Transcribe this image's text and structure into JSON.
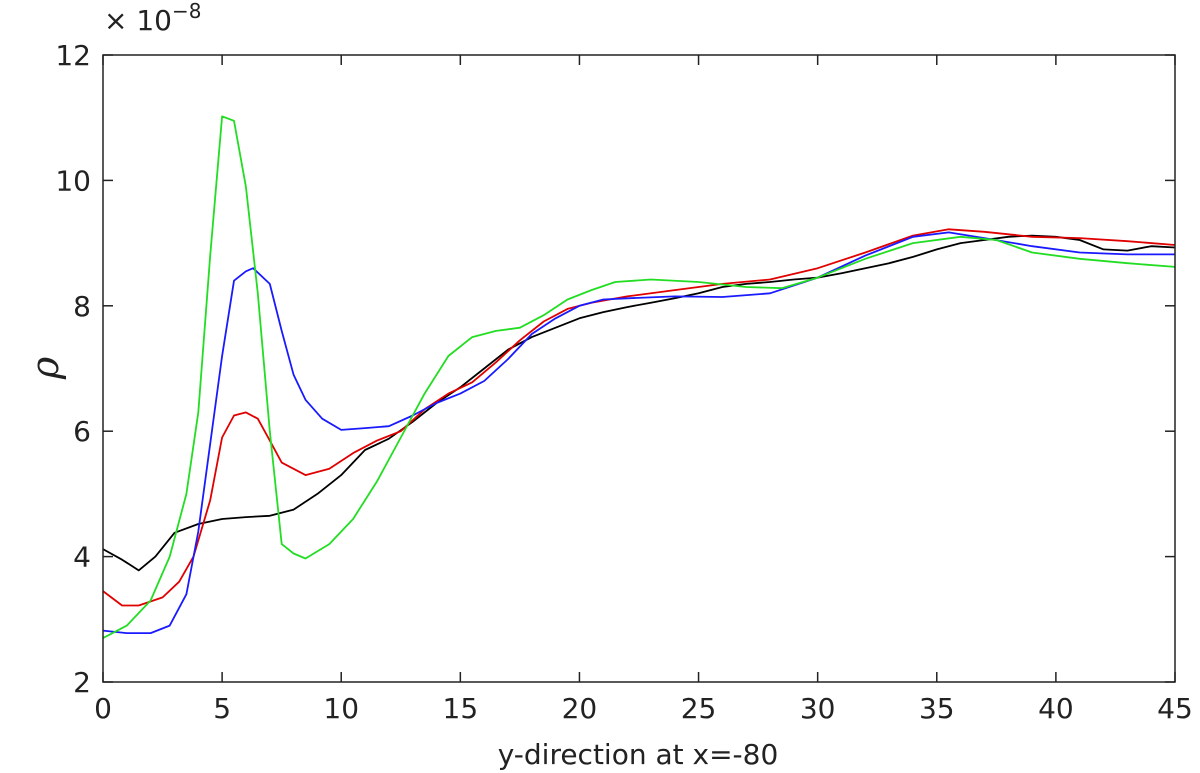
{
  "chart_data": {
    "type": "line",
    "xlabel": "y-direction at x=-80",
    "ylabel": "ρ",
    "y_exponent_prefix": "× 10",
    "y_exponent_power": "−8",
    "xlim": [
      0,
      45
    ],
    "ylim": [
      2,
      12
    ],
    "x_ticks": [
      0,
      5,
      10,
      15,
      20,
      25,
      30,
      35,
      40,
      45
    ],
    "y_ticks": [
      2,
      4,
      6,
      8,
      10,
      12
    ],
    "x_tick_labels": [
      "0",
      "5",
      "10",
      "15",
      "20",
      "25",
      "30",
      "35",
      "40",
      "45"
    ],
    "y_tick_labels": [
      "2",
      "4",
      "6",
      "8",
      "10",
      "12"
    ],
    "grid": false,
    "series": [
      {
        "color": "#000000",
        "points": [
          [
            0,
            4.12
          ],
          [
            0.8,
            3.95
          ],
          [
            1.5,
            3.78
          ],
          [
            2.2,
            4.0
          ],
          [
            3,
            4.38
          ],
          [
            4,
            4.52
          ],
          [
            5,
            4.6
          ],
          [
            6,
            4.63
          ],
          [
            7,
            4.65
          ],
          [
            8,
            4.75
          ],
          [
            9,
            5.0
          ],
          [
            10,
            5.3
          ],
          [
            11,
            5.7
          ],
          [
            12,
            5.88
          ],
          [
            13,
            6.15
          ],
          [
            14,
            6.45
          ],
          [
            15,
            6.7
          ],
          [
            16,
            7.0
          ],
          [
            17,
            7.3
          ],
          [
            18,
            7.5
          ],
          [
            19,
            7.65
          ],
          [
            20,
            7.8
          ],
          [
            21,
            7.9
          ],
          [
            22,
            7.98
          ],
          [
            23,
            8.05
          ],
          [
            24,
            8.12
          ],
          [
            25,
            8.2
          ],
          [
            26,
            8.3
          ],
          [
            27,
            8.35
          ],
          [
            28,
            8.38
          ],
          [
            29,
            8.42
          ],
          [
            30,
            8.45
          ],
          [
            31,
            8.52
          ],
          [
            32,
            8.6
          ],
          [
            33,
            8.68
          ],
          [
            34,
            8.78
          ],
          [
            35,
            8.9
          ],
          [
            36,
            9.0
          ],
          [
            37,
            9.05
          ],
          [
            38,
            9.1
          ],
          [
            39,
            9.12
          ],
          [
            40,
            9.1
          ],
          [
            41,
            9.05
          ],
          [
            42,
            8.9
          ],
          [
            43,
            8.88
          ],
          [
            44,
            8.95
          ],
          [
            45,
            8.93
          ]
        ]
      },
      {
        "color": "#e00000",
        "points": [
          [
            0,
            3.45
          ],
          [
            0.8,
            3.22
          ],
          [
            1.5,
            3.22
          ],
          [
            2.5,
            3.35
          ],
          [
            3.2,
            3.6
          ],
          [
            3.8,
            4.0
          ],
          [
            4.5,
            4.9
          ],
          [
            5,
            5.9
          ],
          [
            5.5,
            6.25
          ],
          [
            6,
            6.3
          ],
          [
            6.5,
            6.2
          ],
          [
            7,
            5.85
          ],
          [
            7.5,
            5.5
          ],
          [
            8.5,
            5.3
          ],
          [
            9.5,
            5.4
          ],
          [
            10.5,
            5.65
          ],
          [
            11.5,
            5.85
          ],
          [
            12.5,
            6.0
          ],
          [
            13.5,
            6.35
          ],
          [
            14.5,
            6.6
          ],
          [
            15.5,
            6.78
          ],
          [
            16.5,
            7.1
          ],
          [
            17.5,
            7.45
          ],
          [
            18.5,
            7.75
          ],
          [
            19.5,
            7.95
          ],
          [
            20.5,
            8.05
          ],
          [
            22,
            8.15
          ],
          [
            24,
            8.25
          ],
          [
            26,
            8.35
          ],
          [
            28,
            8.42
          ],
          [
            30,
            8.6
          ],
          [
            32,
            8.85
          ],
          [
            34,
            9.12
          ],
          [
            35.5,
            9.22
          ],
          [
            37,
            9.18
          ],
          [
            39,
            9.1
          ],
          [
            41,
            9.08
          ],
          [
            43,
            9.03
          ],
          [
            45,
            8.97
          ]
        ]
      },
      {
        "color": "#1a1aff",
        "points": [
          [
            0,
            2.82
          ],
          [
            1,
            2.78
          ],
          [
            2,
            2.78
          ],
          [
            2.8,
            2.9
          ],
          [
            3.5,
            3.4
          ],
          [
            4,
            4.4
          ],
          [
            4.5,
            5.8
          ],
          [
            5,
            7.2
          ],
          [
            5.5,
            8.4
          ],
          [
            6,
            8.55
          ],
          [
            6.3,
            8.6
          ],
          [
            7,
            8.35
          ],
          [
            7.5,
            7.6
          ],
          [
            8,
            6.9
          ],
          [
            8.5,
            6.5
          ],
          [
            9.2,
            6.2
          ],
          [
            10,
            6.02
          ],
          [
            11,
            6.05
          ],
          [
            12,
            6.08
          ],
          [
            13,
            6.25
          ],
          [
            14,
            6.45
          ],
          [
            15,
            6.6
          ],
          [
            16,
            6.8
          ],
          [
            17,
            7.15
          ],
          [
            18,
            7.55
          ],
          [
            19,
            7.8
          ],
          [
            20,
            8.0
          ],
          [
            21,
            8.1
          ],
          [
            22,
            8.12
          ],
          [
            24,
            8.15
          ],
          [
            26,
            8.14
          ],
          [
            28,
            8.2
          ],
          [
            30,
            8.45
          ],
          [
            32,
            8.8
          ],
          [
            34,
            9.1
          ],
          [
            35.5,
            9.17
          ],
          [
            37,
            9.08
          ],
          [
            39,
            8.95
          ],
          [
            41,
            8.85
          ],
          [
            43,
            8.82
          ],
          [
            45,
            8.82
          ]
        ]
      },
      {
        "color": "#22dd22",
        "points": [
          [
            0,
            2.7
          ],
          [
            1,
            2.9
          ],
          [
            2,
            3.3
          ],
          [
            2.8,
            4.0
          ],
          [
            3.5,
            5.0
          ],
          [
            4,
            6.3
          ],
          [
            4.5,
            8.8
          ],
          [
            5,
            11.02
          ],
          [
            5.5,
            10.95
          ],
          [
            6,
            9.9
          ],
          [
            6.5,
            8.2
          ],
          [
            7,
            6.0
          ],
          [
            7.5,
            4.2
          ],
          [
            8,
            4.05
          ],
          [
            8.5,
            3.97
          ],
          [
            9.5,
            4.2
          ],
          [
            10.5,
            4.6
          ],
          [
            11.5,
            5.2
          ],
          [
            12.5,
            5.9
          ],
          [
            13.5,
            6.6
          ],
          [
            14.5,
            7.2
          ],
          [
            15.5,
            7.5
          ],
          [
            16.5,
            7.6
          ],
          [
            17.5,
            7.65
          ],
          [
            18.5,
            7.85
          ],
          [
            19.5,
            8.1
          ],
          [
            20.5,
            8.25
          ],
          [
            21.5,
            8.38
          ],
          [
            23,
            8.42
          ],
          [
            25,
            8.38
          ],
          [
            27,
            8.3
          ],
          [
            28.5,
            8.28
          ],
          [
            30,
            8.45
          ],
          [
            32,
            8.75
          ],
          [
            34,
            9.0
          ],
          [
            36,
            9.1
          ],
          [
            37.5,
            9.05
          ],
          [
            39,
            8.85
          ],
          [
            41,
            8.75
          ],
          [
            43,
            8.68
          ],
          [
            45,
            8.62
          ]
        ]
      }
    ]
  }
}
